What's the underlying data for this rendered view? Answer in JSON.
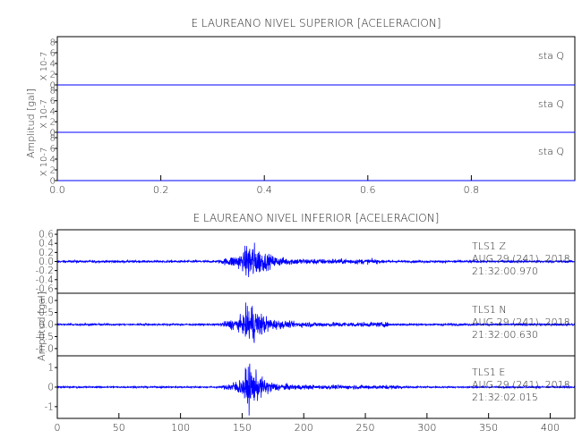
{
  "colors": {
    "trace": "#0000ff",
    "axes": "#000000",
    "background": "#ffffff"
  },
  "chart_data": [
    {
      "type": "line",
      "title": "E LAUREANO NIVEL SUPERIOR [ACELERACION]",
      "ylabel": "Amplitud [gal]",
      "xlim": [
        0.0,
        1.0
      ],
      "xticks": [
        "0.0",
        "0.2",
        "0.4",
        "0.6",
        "0.8"
      ],
      "grid": false,
      "panels": [
        {
          "ylim": [
            0,
            9
          ],
          "yticks": [
            "0",
            "2",
            "4",
            "6",
            "8"
          ],
          "scale_label": "X 10-7",
          "annotation": [
            "sta   Q"
          ],
          "values": [
            0,
            0
          ]
        },
        {
          "ylim": [
            0,
            9
          ],
          "yticks": [
            "0",
            "2",
            "4",
            "6",
            "8"
          ],
          "scale_label": "X 10-7",
          "annotation": [
            "sta   Q"
          ],
          "values": [
            0,
            0
          ]
        },
        {
          "ylim": [
            0,
            9
          ],
          "yticks": [
            "0",
            "2",
            "4",
            "6",
            "8"
          ],
          "scale_label": "X 10-7",
          "annotation": [
            "sta   Q"
          ],
          "values": [
            0,
            0
          ]
        }
      ]
    },
    {
      "type": "line",
      "title": "E LAUREANO NIVEL INFERIOR [ACELERACION]",
      "ylabel": "Amplitud [gal]",
      "xlim": [
        0,
        420
      ],
      "xticks": [
        "0",
        "50",
        "100",
        "150",
        "200",
        "250",
        "300",
        "350",
        "400"
      ],
      "grid": false,
      "panels": [
        {
          "ylim": [
            -0.7,
            0.7
          ],
          "yticks": [
            "0.6",
            "0.4",
            "0.2",
            "0.0",
            "-0.2",
            "-0.4",
            "-0.6"
          ],
          "annotation": [
            "TLS1   Z",
            "AUG 29 (241), 2018",
            "21:32:00.970"
          ],
          "trace": {
            "noise": 0.03,
            "onset": 130,
            "peak_time": 157,
            "peak_amp": 0.65,
            "coda_end": 260,
            "coda_amp": 0.07
          }
        },
        {
          "ylim": [
            -1.3,
            1.3
          ],
          "yticks": [
            "1.0",
            "0.5",
            "0.0",
            "-0.5",
            "-1.0"
          ],
          "annotation": [
            "TLS1   N",
            "AUG 29 (241), 2018",
            "21:32:00.630"
          ],
          "trace": {
            "noise": 0.05,
            "onset": 130,
            "peak_time": 157,
            "peak_amp": 1.2,
            "coda_end": 270,
            "coda_amp": 0.12
          }
        },
        {
          "ylim": [
            -1.6,
            1.6
          ],
          "yticks": [
            "1",
            "0",
            "-1"
          ],
          "annotation": [
            "TLS1   E",
            "AUG 29 (241), 2018",
            "21:32:02.015"
          ],
          "trace": {
            "noise": 0.05,
            "onset": 132,
            "peak_time": 156,
            "peak_amp": 1.5,
            "coda_end": 280,
            "coda_amp": 0.13
          }
        }
      ]
    }
  ]
}
